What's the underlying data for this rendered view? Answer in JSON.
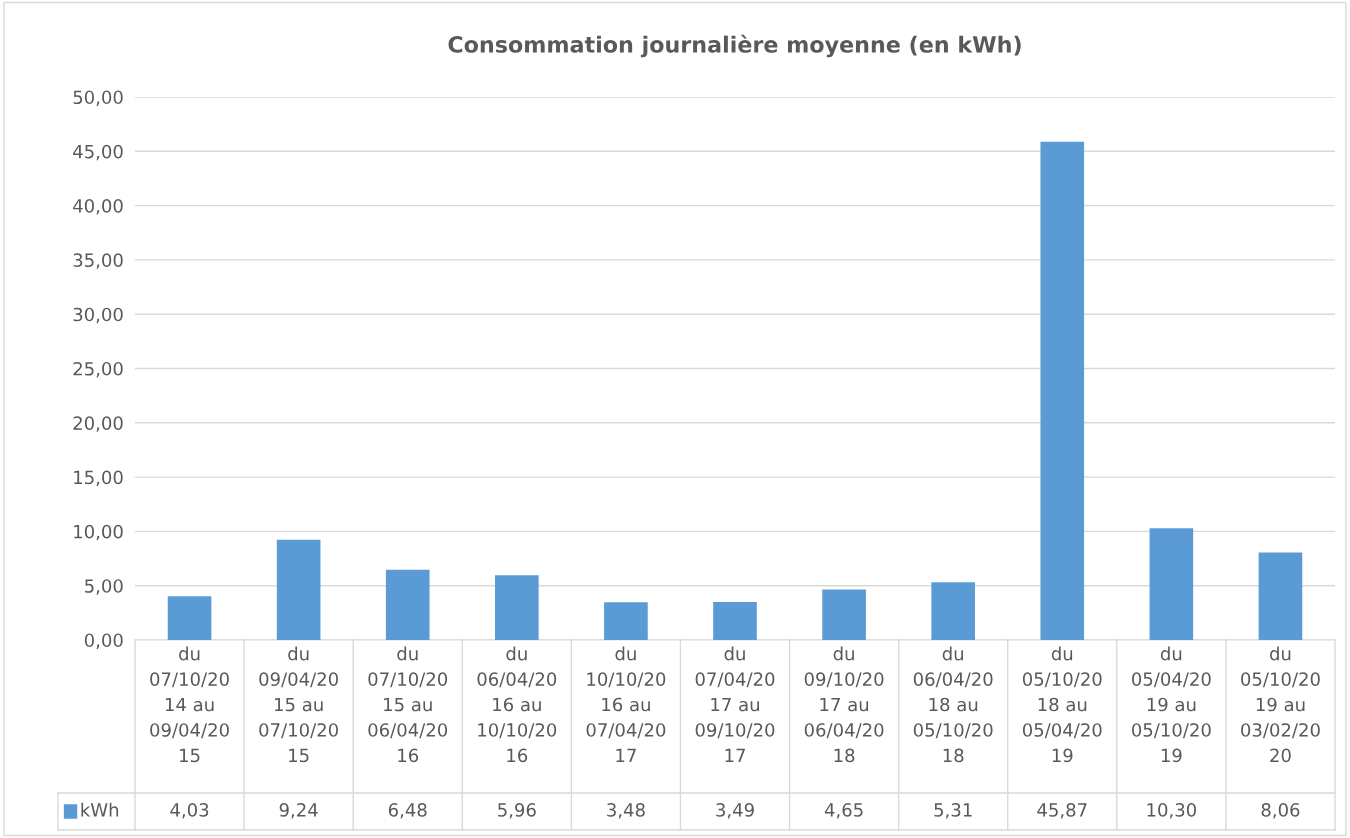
{
  "chart_data": {
    "type": "bar",
    "title": "Consommation journalière moyenne (en kWh)",
    "categories": [
      "du 07/10/2014 au 09/04/2015",
      "du 09/04/2015 au 07/10/2015",
      "du 07/10/2015 au 06/04/2016",
      "du 06/04/2016 au 10/10/2016",
      "du 10/10/2016 au 07/04/2017",
      "du 07/04/2017 au 09/10/2017",
      "du 09/10/2017 au 06/04/2018",
      "du 06/04/2018 au 05/10/2018",
      "du 05/10/2018 au 05/04/2019",
      "du 05/04/2019 au 05/10/2019",
      "du 05/10/2019 au 03/02/2020"
    ],
    "series": [
      {
        "name": "kWh",
        "color": "#5b9bd5",
        "values": [
          4.03,
          9.24,
          6.48,
          5.96,
          3.48,
          3.49,
          4.65,
          5.31,
          45.87,
          10.3,
          8.06
        ],
        "value_labels": [
          "4,03",
          "9,24",
          "6,48",
          "5,96",
          "3,48",
          "3,49",
          "4,65",
          "5,31",
          "45,87",
          "10,30",
          "8,06"
        ]
      }
    ],
    "ylim": [
      0,
      50
    ],
    "yticks": [
      {
        "value": 0,
        "label": "0,00"
      },
      {
        "value": 5,
        "label": "5,00"
      },
      {
        "value": 10,
        "label": "10,00"
      },
      {
        "value": 15,
        "label": "15,00"
      },
      {
        "value": 20,
        "label": "20,00"
      },
      {
        "value": 25,
        "label": "25,00"
      },
      {
        "value": 30,
        "label": "30,00"
      },
      {
        "value": 35,
        "label": "35,00"
      },
      {
        "value": 40,
        "label": "40,00"
      },
      {
        "value": 45,
        "label": "45,00"
      },
      {
        "value": 50,
        "label": "50,00"
      }
    ],
    "grid": "y"
  }
}
